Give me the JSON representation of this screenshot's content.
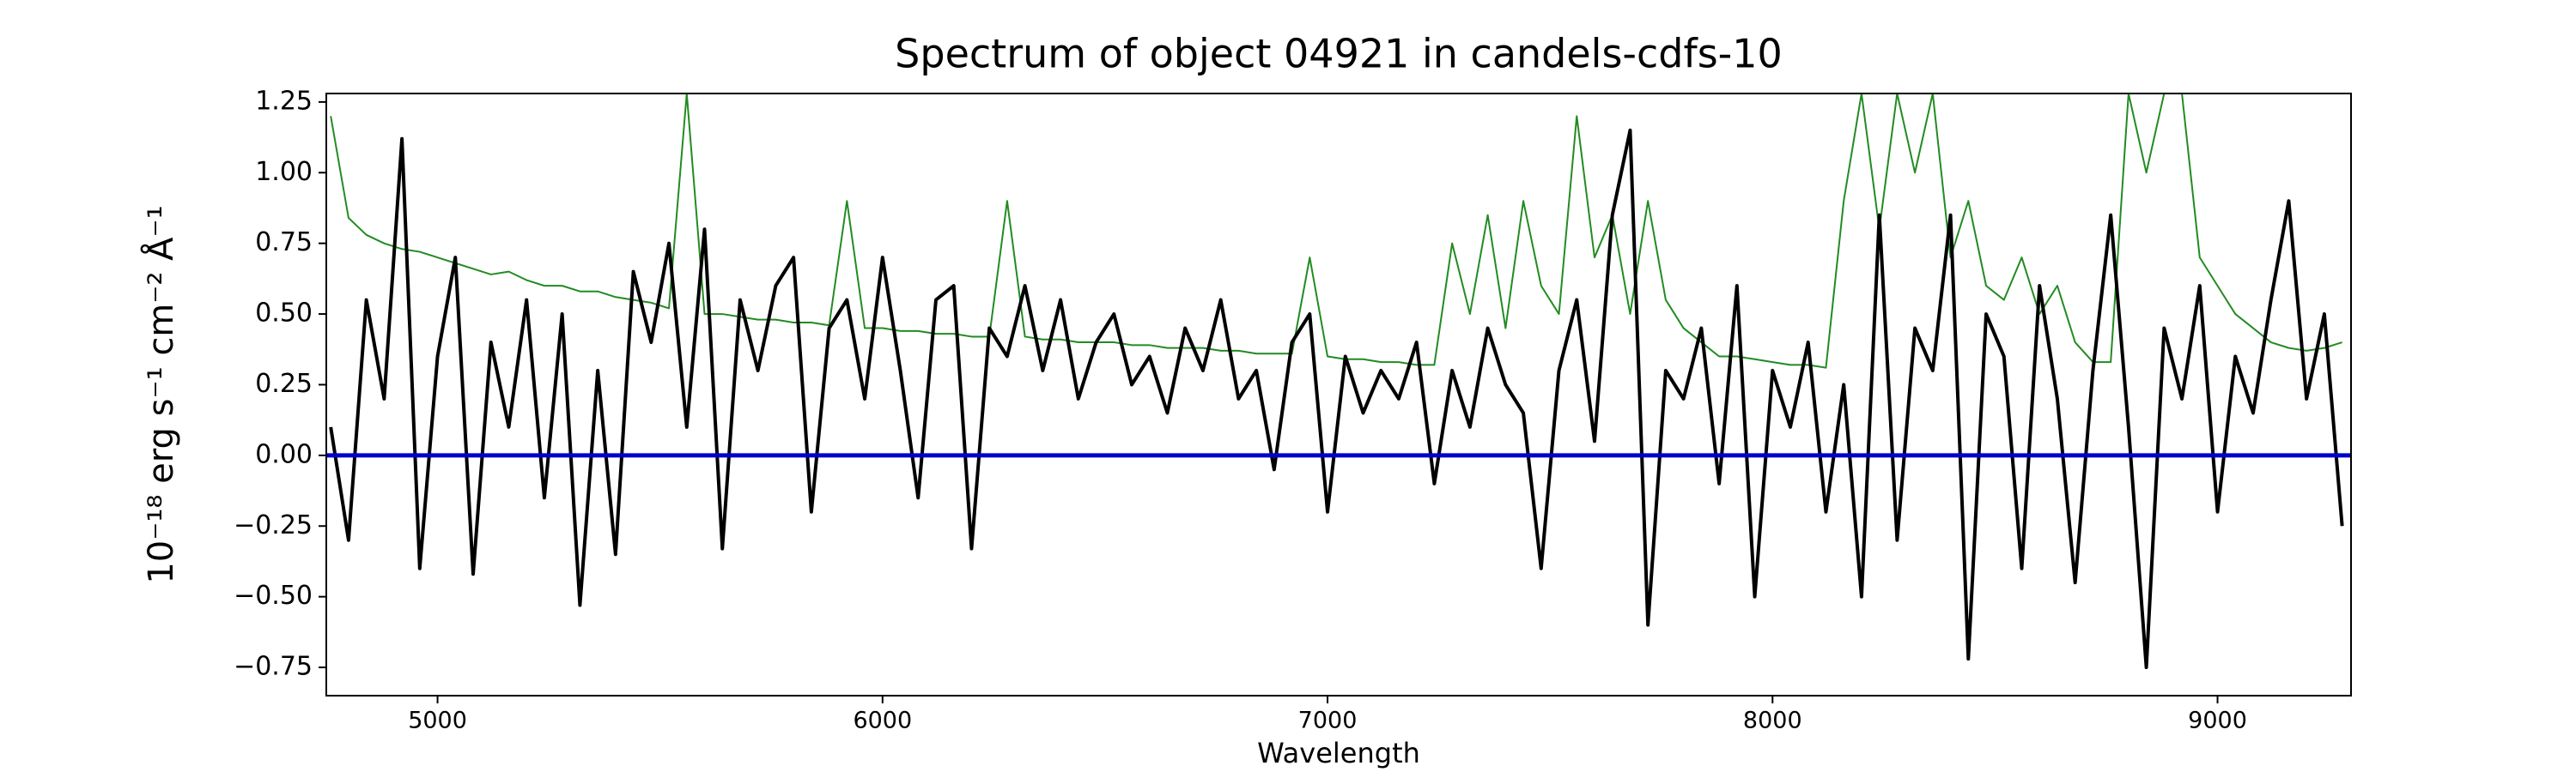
{
  "chart_data": {
    "type": "line",
    "title": "Spectrum of object 04921 in candels-cdfs-10",
    "xlabel": "Wavelength",
    "ylabel": "10⁻¹⁸ erg s⁻¹ cm⁻² Å⁻¹",
    "xlim": [
      4750,
      9300
    ],
    "ylim": [
      -0.85,
      1.28
    ],
    "xticks": [
      5000,
      6000,
      7000,
      8000,
      9000
    ],
    "yticks": [
      {
        "value": 1.25,
        "label": "1.25"
      },
      {
        "value": 1.0,
        "label": "1.00"
      },
      {
        "value": 0.75,
        "label": "0.75"
      },
      {
        "value": 0.5,
        "label": "0.50"
      },
      {
        "value": 0.25,
        "label": "0.25"
      },
      {
        "value": 0,
        "label": "0.00"
      },
      {
        "value": -0.25,
        "label": "−0.25"
      },
      {
        "value": -0.5,
        "label": "−0.50"
      },
      {
        "value": -0.75,
        "label": "−0.75"
      }
    ],
    "x": [
      4760,
      4800,
      4840,
      4880,
      4920,
      4960,
      5000,
      5040,
      5080,
      5120,
      5160,
      5200,
      5240,
      5280,
      5320,
      5360,
      5400,
      5440,
      5480,
      5520,
      5560,
      5600,
      5640,
      5680,
      5720,
      5760,
      5800,
      5840,
      5880,
      5920,
      5960,
      6000,
      6040,
      6080,
      6120,
      6160,
      6200,
      6240,
      6280,
      6320,
      6360,
      6400,
      6440,
      6480,
      6520,
      6560,
      6600,
      6640,
      6680,
      6720,
      6760,
      6800,
      6840,
      6880,
      6920,
      6960,
      7000,
      7040,
      7080,
      7120,
      7160,
      7200,
      7240,
      7280,
      7320,
      7360,
      7400,
      7440,
      7480,
      7520,
      7560,
      7600,
      7640,
      7680,
      7720,
      7760,
      7800,
      7840,
      7880,
      7920,
      7960,
      8000,
      8040,
      8080,
      8120,
      8160,
      8200,
      8240,
      8280,
      8320,
      8360,
      8400,
      8440,
      8480,
      8520,
      8560,
      8600,
      8640,
      8680,
      8720,
      8760,
      8800,
      8840,
      8880,
      8920,
      8960,
      9000,
      9040,
      9080,
      9120,
      9160,
      9200,
      9240,
      9280
    ],
    "series": [
      {
        "color": "#228b22",
        "width": 2,
        "values": [
          1.2,
          0.84,
          0.78,
          0.75,
          0.73,
          0.72,
          0.7,
          0.68,
          0.66,
          0.64,
          0.65,
          0.62,
          0.6,
          0.6,
          0.58,
          0.58,
          0.56,
          0.55,
          0.54,
          0.52,
          1.28,
          0.5,
          0.5,
          0.49,
          0.48,
          0.48,
          0.47,
          0.47,
          0.46,
          0.9,
          0.45,
          0.45,
          0.44,
          0.44,
          0.43,
          0.43,
          0.42,
          0.42,
          0.9,
          0.42,
          0.41,
          0.41,
          0.4,
          0.4,
          0.4,
          0.39,
          0.39,
          0.38,
          0.38,
          0.38,
          0.37,
          0.37,
          0.36,
          0.36,
          0.36,
          0.7,
          0.35,
          0.34,
          0.34,
          0.33,
          0.33,
          0.32,
          0.32,
          0.75,
          0.5,
          0.85,
          0.45,
          0.9,
          0.6,
          0.5,
          1.2,
          0.7,
          0.85,
          0.5,
          0.9,
          0.55,
          0.45,
          0.4,
          0.35,
          0.35,
          0.34,
          0.33,
          0.32,
          0.32,
          0.31,
          0.9,
          1.28,
          0.8,
          1.28,
          1.0,
          1.28,
          0.7,
          0.9,
          0.6,
          0.55,
          0.7,
          0.5,
          0.6,
          0.4,
          0.33,
          0.33,
          1.28,
          1.0,
          1.28,
          1.28,
          0.7,
          0.6,
          0.5,
          0.45,
          0.4,
          0.38,
          0.37,
          0.38,
          0.4
        ]
      },
      {
        "color": "#000000",
        "width": 4,
        "values": [
          0.1,
          -0.3,
          0.55,
          0.2,
          1.12,
          -0.4,
          0.35,
          0.7,
          -0.42,
          0.4,
          0.1,
          0.55,
          -0.15,
          0.5,
          -0.53,
          0.3,
          -0.35,
          0.65,
          0.4,
          0.75,
          0.1,
          0.8,
          -0.33,
          0.55,
          0.3,
          0.6,
          0.7,
          -0.2,
          0.45,
          0.55,
          0.2,
          0.7,
          0.3,
          -0.15,
          0.55,
          0.6,
          -0.33,
          0.45,
          0.35,
          0.6,
          0.3,
          0.55,
          0.2,
          0.4,
          0.5,
          0.25,
          0.35,
          0.15,
          0.45,
          0.3,
          0.55,
          0.2,
          0.3,
          -0.05,
          0.4,
          0.5,
          -0.2,
          0.35,
          0.15,
          0.3,
          0.2,
          0.4,
          -0.1,
          0.3,
          0.1,
          0.45,
          0.25,
          0.15,
          -0.4,
          0.3,
          0.55,
          0.05,
          0.85,
          1.15,
          -0.6,
          0.3,
          0.2,
          0.45,
          -0.1,
          0.6,
          -0.5,
          0.3,
          0.1,
          0.4,
          -0.2,
          0.25,
          -0.5,
          0.85,
          -0.3,
          0.45,
          0.3,
          0.85,
          -0.72,
          0.5,
          0.35,
          -0.4,
          0.6,
          0.2,
          -0.45,
          0.3,
          0.85,
          0.1,
          -0.75,
          0.45,
          0.2,
          0.6,
          -0.2,
          0.35,
          0.15,
          0.55,
          0.9,
          0.2,
          0.5,
          -0.25
        ]
      }
    ],
    "hlines": [
      {
        "y": 0,
        "color": "#0000cc"
      }
    ]
  }
}
